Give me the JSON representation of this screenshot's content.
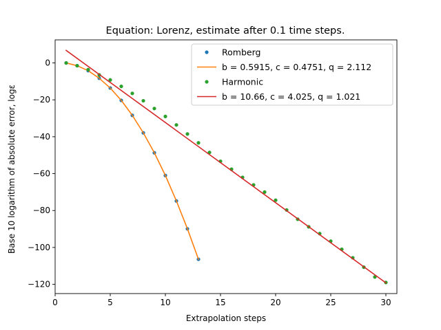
{
  "chart_data": {
    "type": "line",
    "title": "Equation: Lorenz, estimate after 0.1 time steps.",
    "xlabel": "Extrapolation steps",
    "ylabel": "Base 10 logarithm of absolute error, logε",
    "xlim": [
      0,
      31
    ],
    "ylim": [
      -125,
      12.5
    ],
    "xticks": [
      0,
      5,
      10,
      15,
      20,
      25,
      30
    ],
    "yticks": [
      0,
      -20,
      -40,
      -60,
      -80,
      -100,
      -120
    ],
    "grid": false,
    "legend_position": "top-right",
    "series": [
      {
        "name": "Romberg",
        "kind": "scatter",
        "color": "#1f77b4",
        "x": [
          1,
          2,
          3,
          4,
          5,
          6,
          7,
          8,
          9,
          10,
          11,
          12,
          13
        ],
        "y": [
          0,
          -1.5,
          -4.2,
          -8.3,
          -13.6,
          -20.3,
          -28.4,
          -37.9,
          -48.7,
          -61.0,
          -74.8,
          -89.9,
          -106.4
        ]
      },
      {
        "name": "b = 0.5915, c = 0.4751, q = 2.112",
        "kind": "line",
        "color": "#ff7f0e",
        "x": [
          1,
          2,
          3,
          4,
          5,
          6,
          7,
          8,
          9,
          10,
          11,
          12,
          13
        ],
        "y": [
          0,
          -1.5,
          -4.2,
          -8.3,
          -13.6,
          -20.3,
          -28.4,
          -37.9,
          -48.7,
          -61.0,
          -74.8,
          -89.9,
          -106.4
        ]
      },
      {
        "name": "Harmonic",
        "kind": "scatter",
        "color": "#2ca02c",
        "x": [
          1,
          2,
          3,
          4,
          5,
          6,
          7,
          8,
          9,
          10,
          11,
          12,
          13,
          14,
          15,
          16,
          17,
          18,
          19,
          20,
          21,
          22,
          23,
          24,
          25,
          26,
          27,
          28,
          29,
          30
        ],
        "y": [
          0,
          -1.5,
          -3.6,
          -6.5,
          -9.2,
          -12.7,
          -16.5,
          -20.5,
          -24.7,
          -29.0,
          -33.6,
          -38.5,
          -43.3,
          -48.5,
          -53.3,
          -57.6,
          -62.0,
          -66.1,
          -70.0,
          -74.4,
          -79.7,
          -84.7,
          -88.8,
          -92.5,
          -96.6,
          -101.0,
          -105.6,
          -110.7,
          -116.0,
          -119.0
        ]
      },
      {
        "name": "b = 10.66, c = 4.025, q = 1.021",
        "kind": "line",
        "color": "#d62728",
        "x": [
          1,
          30
        ],
        "y": [
          6.8,
          -119.2
        ]
      }
    ]
  }
}
